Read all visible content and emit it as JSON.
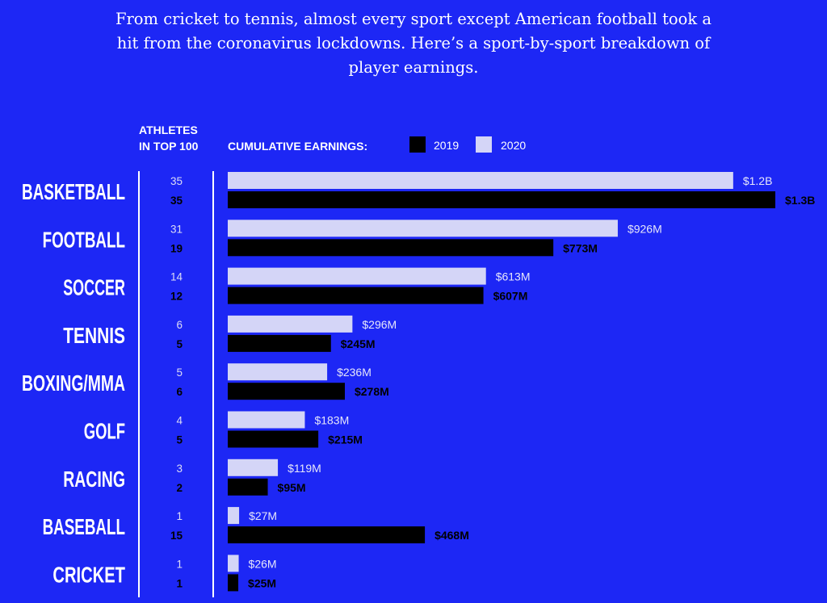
{
  "intro": "From cricket to tennis, almost every sport except American football took a hit from the coronavirus lockdowns. Here’s a sport-by-sport breakdown of player earnings.",
  "chart_data": {
    "type": "bar",
    "orientation": "horizontal",
    "athletes_header": [
      "ATHLETES",
      "IN TOP 100"
    ],
    "legend_title": "CUMULATIVE EARNINGS:",
    "legend": [
      {
        "name": "2019",
        "color": "#000000"
      },
      {
        "name": "2020",
        "color": "#d4d5f7"
      }
    ],
    "categories": [
      "BASKETBALL",
      "FOOTBALL",
      "SOCCER",
      "TENNIS",
      "BOXING/MMA",
      "GOLF",
      "RACING",
      "BASEBALL",
      "CRICKET"
    ],
    "series": [
      {
        "name": "2020",
        "unit": "millions USD",
        "values": [
          1200,
          926,
          613,
          296,
          236,
          183,
          119,
          27,
          26
        ],
        "labels": [
          "$1.2B",
          "$926M",
          "$613M",
          "$296M",
          "$236M",
          "$183M",
          "$119M",
          "$27M",
          "$26M"
        ],
        "athletes": [
          "35",
          "31",
          "14",
          "6",
          "5",
          "4",
          "3",
          "1",
          "1"
        ]
      },
      {
        "name": "2019",
        "unit": "millions USD",
        "values": [
          1300,
          773,
          607,
          245,
          278,
          215,
          95,
          468,
          25
        ],
        "labels": [
          "$1.3B",
          "$773M",
          "$607M",
          "$245M",
          "$278M",
          "$215M",
          "$95M",
          "$468M",
          "$25M"
        ],
        "athletes": [
          "35",
          "19",
          "12",
          "5",
          "6",
          "5",
          "2",
          "15",
          "1"
        ]
      }
    ],
    "xlim": [
      0,
      1300
    ]
  }
}
